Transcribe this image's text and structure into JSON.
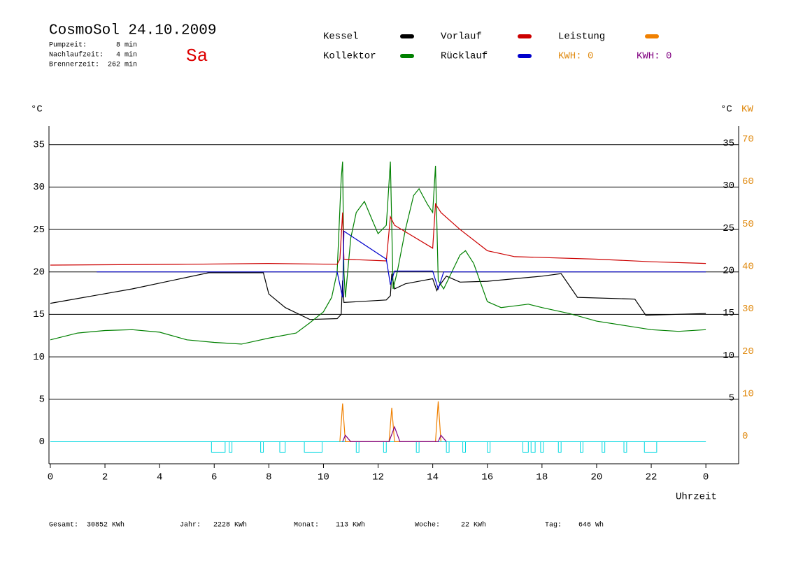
{
  "chart_data": {
    "type": "line",
    "title": "CosmoSol 24.10.2009",
    "weekday": "Sa",
    "info": [
      "Pumpzeit:       8 min",
      "Nachlaufzeit:   4 min",
      "Brennerzeit:  262 min"
    ],
    "ylabel": "°C",
    "y2label_c": "°C",
    "y2label": "KW",
    "xlabel": "Uhrzeit",
    "kwh_labels": [
      {
        "text": "KWH: 0",
        "color": "#e08a10"
      },
      {
        "text": "KWH: 0",
        "color": "#800080"
      }
    ],
    "xlim": [
      -0.05,
      25.2
    ],
    "ylim": [
      -2.6,
      37.2
    ],
    "y2lim": [
      -5.2,
      74.4
    ],
    "xticks": [
      0,
      2,
      4,
      6,
      8,
      10,
      12,
      14,
      16,
      18,
      20,
      22,
      {
        "value": 24,
        "label": "0"
      }
    ],
    "yticks": [
      0,
      5,
      10,
      15,
      20,
      25,
      30,
      35
    ],
    "yticks_right": [
      5,
      10,
      15,
      20,
      25,
      30,
      35
    ],
    "y2ticks": [
      0,
      10,
      20,
      30,
      40,
      50,
      60,
      70
    ],
    "grid": true,
    "series": [
      {
        "name": "Kessel",
        "color": "#000000",
        "x": [
          0,
          3,
          5.8,
          7.8,
          8,
          8.6,
          9.5,
          10.5,
          10.65,
          10.7,
          10.75,
          12.3,
          12.45,
          12.5,
          12.6,
          13,
          14,
          14.15,
          14.2,
          14.5,
          15,
          16,
          18,
          18.7,
          19.3,
          21.4,
          21.8,
          24
        ],
        "values": [
          16.3,
          18,
          19.9,
          19.9,
          17.4,
          15.8,
          14.4,
          14.5,
          15,
          19,
          16.4,
          16.7,
          17.2,
          19.8,
          18,
          18.6,
          19.2,
          17.8,
          18.2,
          19.5,
          18.8,
          18.9,
          19.5,
          19.8,
          17,
          16.8,
          14.9,
          15.1
        ]
      },
      {
        "name": "Kollektor",
        "color": "#008000",
        "x": [
          0,
          1,
          2,
          3,
          4,
          5,
          6,
          7,
          8,
          9,
          9.5,
          10,
          10.3,
          10.5,
          10.65,
          10.7,
          10.75,
          10.8,
          11,
          11.2,
          11.5,
          11.8,
          12,
          12.3,
          12.45,
          12.55,
          12.7,
          13,
          13.3,
          13.5,
          13.8,
          14,
          14.1,
          14.2,
          14.4,
          14.7,
          15,
          15.2,
          15.5,
          16,
          16.5,
          17,
          17.5,
          18,
          19,
          20,
          21,
          22,
          23,
          24
        ],
        "values": [
          12,
          12.8,
          13.1,
          13.2,
          12.9,
          12,
          11.7,
          11.5,
          12.2,
          12.8,
          14,
          15.3,
          17,
          20,
          31,
          33,
          20,
          17,
          24,
          27,
          28.3,
          26,
          24.5,
          25.5,
          33,
          18,
          20,
          25,
          29,
          29.8,
          28,
          27,
          32.5,
          19,
          18,
          20,
          22,
          22.5,
          21,
          16.5,
          15.8,
          16,
          16.2,
          15.8,
          15.1,
          14.2,
          13.7,
          13.2,
          13,
          13.2
        ]
      },
      {
        "name": "Vorlauf",
        "color": "#cc0000",
        "x": [
          0,
          5,
          8,
          10.5,
          10.6,
          10.7,
          10.75,
          12.3,
          12.45,
          12.6,
          14,
          14.1,
          14.3,
          15,
          16,
          17,
          20,
          22,
          24
        ],
        "values": [
          20.8,
          20.9,
          21,
          20.9,
          21.5,
          27,
          21.5,
          21.3,
          26.5,
          25.5,
          22.8,
          28,
          27,
          25,
          22.5,
          21.8,
          21.5,
          21.2,
          21
        ]
      },
      {
        "name": "Rücklauf",
        "color": "#0000cc",
        "x": [
          1.7,
          10.5,
          10.7,
          10.75,
          12.3,
          12.45,
          12.6,
          14,
          14.2,
          14.4,
          24
        ],
        "values": [
          20,
          20,
          17,
          24.8,
          21.5,
          18.5,
          20.1,
          20.1,
          18,
          20,
          20
        ]
      },
      {
        "name": "Leistung",
        "color": "#f08000",
        "axis": "y2",
        "x": [
          10.6,
          10.7,
          10.8,
          12.4,
          12.5,
          12.6,
          14.1,
          14.2,
          14.3
        ],
        "values": [
          0,
          9,
          0,
          0,
          8,
          0,
          0,
          9.5,
          0
        ]
      },
      {
        "color": "#800080",
        "axis": "y2",
        "x": [
          10.7,
          10.8,
          11,
          12.4,
          12.6,
          12.8,
          14.2,
          14.3,
          14.5
        ],
        "values": [
          0,
          1.5,
          0,
          0,
          3.5,
          0,
          0,
          1.5,
          0
        ]
      }
    ],
    "pump_color": "#00d8e0",
    "pump_intervals": [
      [
        5.9,
        6.4
      ],
      [
        6.55,
        6.65
      ],
      [
        7.7,
        7.8
      ],
      [
        8.4,
        8.6
      ],
      [
        9.3,
        9.95
      ],
      [
        11.2,
        11.3
      ],
      [
        12.2,
        12.3
      ],
      [
        13.4,
        13.5
      ],
      [
        14.5,
        14.6
      ],
      [
        15.1,
        15.2
      ],
      [
        16,
        16.1
      ],
      [
        17.3,
        17.5
      ],
      [
        17.6,
        17.75
      ],
      [
        17.95,
        18.05
      ],
      [
        18.6,
        18.7
      ],
      [
        19.4,
        19.5
      ],
      [
        20.2,
        20.3
      ],
      [
        21,
        21.1
      ],
      [
        21.75,
        22.2
      ]
    ],
    "totals": [
      "Gesamt:  30852 KWh",
      "Jahr:   2228 KWh",
      "Monat:    113 KWh",
      "Woche:     22 KWh",
      "Tag:    646 Wh"
    ]
  }
}
